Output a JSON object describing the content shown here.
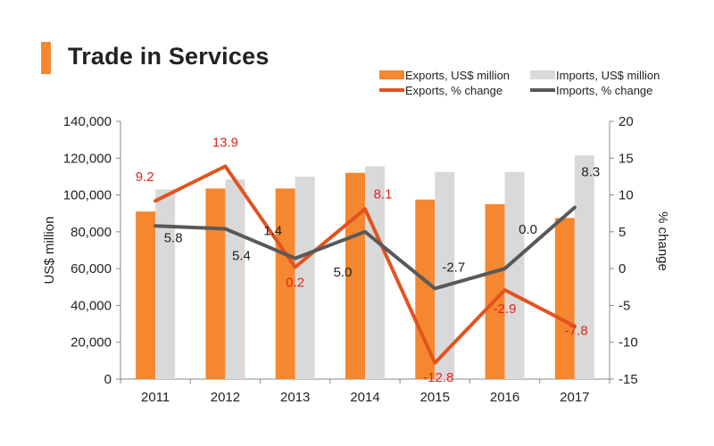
{
  "chart_data": {
    "type": "bar",
    "title": "Trade in Services",
    "categories": [
      "2011",
      "2012",
      "2013",
      "2014",
      "2015",
      "2016",
      "2017"
    ],
    "ylabel": "US$ million",
    "y2label": "% change",
    "ylim": [
      0,
      140000
    ],
    "y2lim": [
      -15,
      20
    ],
    "yticks": [
      "0",
      "20,000",
      "40,000",
      "60,000",
      "80,000",
      "100,000",
      "120,000",
      "140,000"
    ],
    "y2ticks": [
      "-15",
      "-10",
      "-5",
      "0",
      "5",
      "10",
      "15",
      "20"
    ],
    "legend_position": "top-right",
    "colors": {
      "exports_bar": "#F4872F",
      "imports_bar": "#D9D9D9",
      "exports_line": "#E2531F",
      "imports_line": "#595959",
      "exports_label": "#E0251B",
      "imports_label": "#222222",
      "axis": "#888888"
    },
    "series": [
      {
        "name": "Exports, US$ million",
        "kind": "bar",
        "axis": "left",
        "values": [
          91000,
          103500,
          103500,
          112000,
          97500,
          95000,
          87500
        ]
      },
      {
        "name": "Imports, US$ million",
        "kind": "bar",
        "axis": "left",
        "values": [
          103000,
          108500,
          110000,
          115500,
          112500,
          112500,
          121500
        ]
      },
      {
        "name": "Exports, % change",
        "kind": "line",
        "axis": "right",
        "values": [
          9.2,
          13.9,
          0.2,
          8.1,
          -12.8,
          -2.9,
          -7.8
        ],
        "labels": [
          "9.2",
          "13.9",
          "0.2",
          "8.1",
          "-12.8",
          "-2.9",
          "-7.8"
        ]
      },
      {
        "name": "Imports, % change",
        "kind": "line",
        "axis": "right",
        "values": [
          5.8,
          5.4,
          1.4,
          5.0,
          -2.7,
          0.0,
          8.3
        ],
        "labels": [
          "5.8",
          "5.4",
          "1.4",
          "5.0",
          "-2.7",
          "0.0",
          "8.3"
        ]
      }
    ]
  }
}
